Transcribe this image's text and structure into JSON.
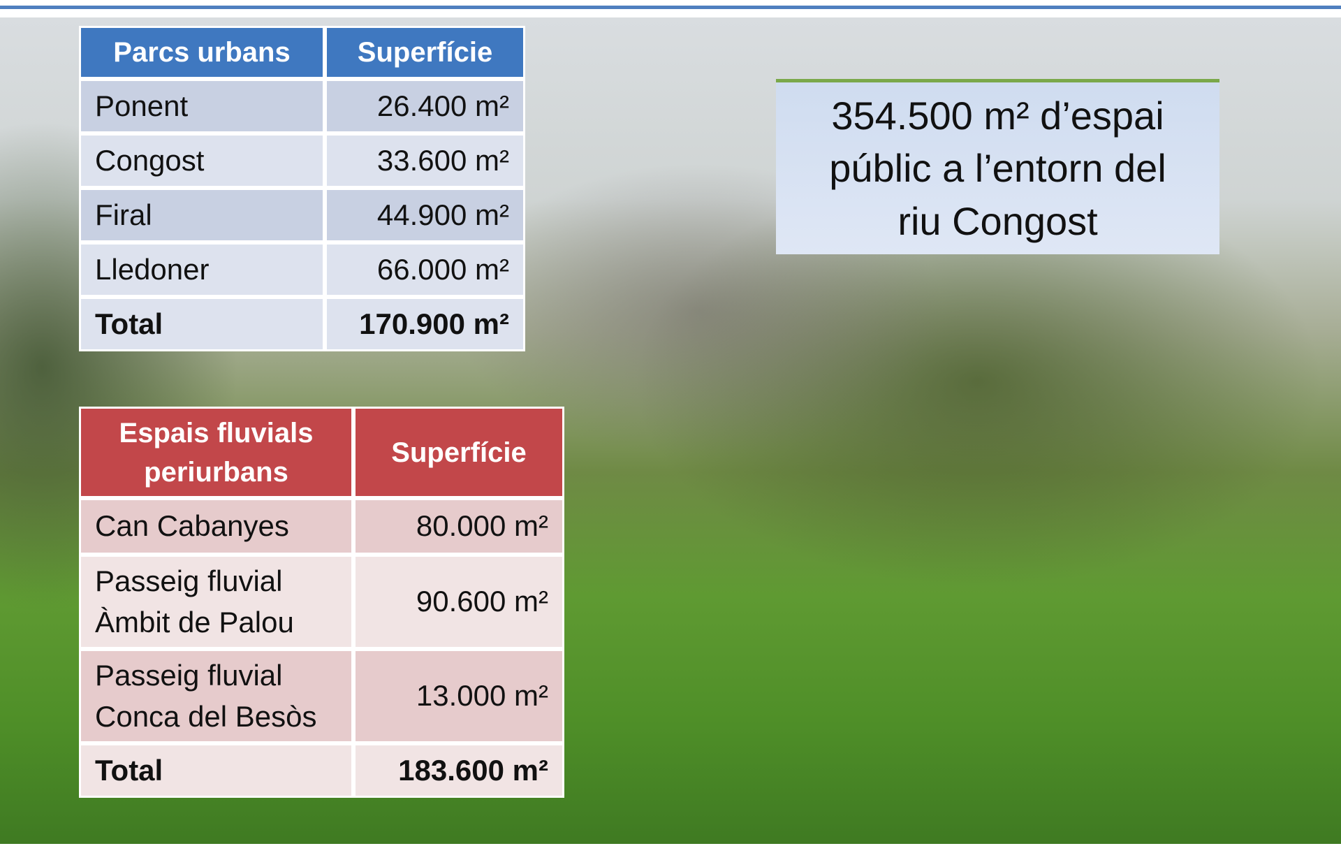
{
  "tables": [
    {
      "header": [
        "Parcs urbans",
        "Superfície"
      ],
      "rows": [
        [
          [
            "Ponent"
          ],
          [
            "26.400 m²"
          ]
        ],
        [
          [
            "Congost"
          ],
          [
            "33.600 m²"
          ]
        ],
        [
          [
            "Firal"
          ],
          [
            "44.900 m²"
          ]
        ],
        [
          [
            "Lledoner"
          ],
          [
            "66.000 m²"
          ]
        ],
        [
          [
            "Total"
          ],
          [
            "170.900 m²"
          ]
        ]
      ]
    },
    {
      "header": [
        "Espais fluvials periurbans",
        "Superfície"
      ],
      "rows": [
        [
          [
            "Can Cabanyes"
          ],
          [
            "80.000 m²"
          ]
        ],
        [
          [
            "Passeig fluvial",
            "Àmbit de Palou"
          ],
          [
            "90.600 m²"
          ]
        ],
        [
          [
            "Passeig fluvial",
            "Conca del Besòs"
          ],
          [
            "13.000 m²"
          ]
        ],
        [
          [
            "Total"
          ],
          [
            "183.600 m²"
          ]
        ]
      ]
    }
  ],
  "callout": [
    "354.500 m² d’espai",
    "públic a l’entorn del",
    "riu Congost"
  ]
}
